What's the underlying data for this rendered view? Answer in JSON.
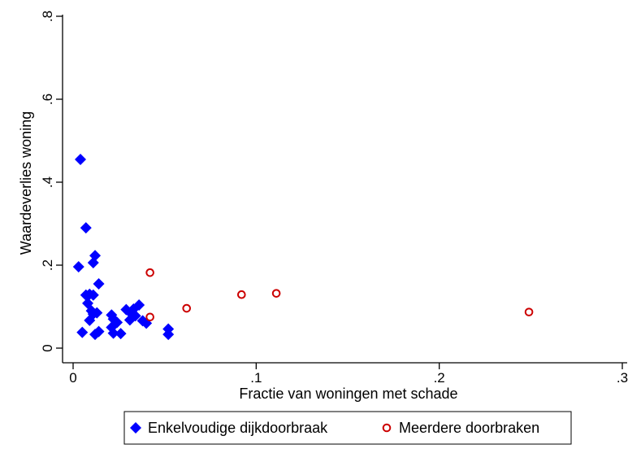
{
  "chart_data": {
    "type": "scatter",
    "xlabel": "Fractie van woningen met schade",
    "ylabel": "Waardeverlies woning",
    "xlim": [
      0,
      0.3
    ],
    "ylim": [
      0,
      0.8
    ],
    "x_ticks": [
      {
        "value": 0,
        "label": "0"
      },
      {
        "value": 0.1,
        "label": ".1"
      },
      {
        "value": 0.2,
        "label": ".2"
      },
      {
        "value": 0.3,
        "label": ".3"
      }
    ],
    "y_ticks": [
      {
        "value": 0,
        "label": "0"
      },
      {
        "value": 0.2,
        "label": ".2"
      },
      {
        "value": 0.4,
        "label": ".4"
      },
      {
        "value": 0.6,
        "label": ".6"
      },
      {
        "value": 0.8,
        "label": ".8"
      }
    ],
    "grid": false,
    "legend_position": "bottom",
    "series": [
      {
        "name": "Enkelvoudige dijkdoorbraak",
        "marker": "diamond",
        "color": "#0000ff",
        "x": [
          0.004,
          0.003,
          0.007,
          0.012,
          0.011,
          0.014,
          0.007,
          0.009,
          0.011,
          0.008,
          0.01,
          0.013,
          0.011,
          0.009,
          0.005,
          0.012,
          0.014,
          0.021,
          0.022,
          0.024,
          0.021,
          0.022,
          0.026,
          0.029,
          0.031,
          0.033,
          0.036,
          0.034,
          0.032,
          0.038,
          0.04,
          0.052,
          0.052
        ],
        "y": [
          0.455,
          0.196,
          0.29,
          0.223,
          0.206,
          0.155,
          0.128,
          0.13,
          0.128,
          0.108,
          0.09,
          0.085,
          0.082,
          0.067,
          0.038,
          0.033,
          0.04,
          0.08,
          0.07,
          0.062,
          0.05,
          0.036,
          0.035,
          0.093,
          0.068,
          0.094,
          0.104,
          0.078,
          0.082,
          0.066,
          0.06,
          0.046,
          0.033
        ]
      },
      {
        "name": "Meerdere doorbraken",
        "marker": "hollow-circle",
        "color": "#cc0000",
        "x": [
          0.042,
          0.042,
          0.062,
          0.092,
          0.111,
          0.249
        ],
        "y": [
          0.182,
          0.075,
          0.096,
          0.129,
          0.132,
          0.087
        ]
      }
    ]
  }
}
